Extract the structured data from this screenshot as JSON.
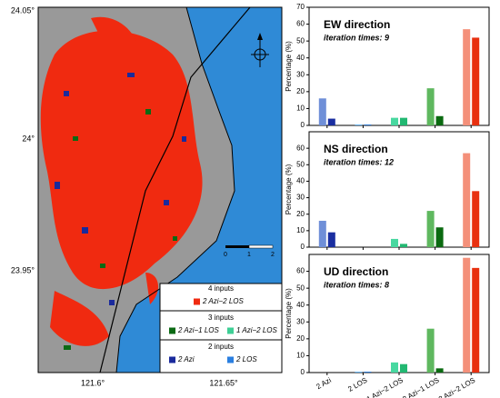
{
  "map": {
    "lat_labels": [
      "24.05°",
      "24°",
      "23.95°"
    ],
    "lon_labels": [
      "121.6°",
      "121.65°"
    ],
    "scale_labels": [
      "0",
      "1",
      "2"
    ],
    "legend": {
      "groups": [
        {
          "title": "4 inputs",
          "items": [
            "2 Azi−2 LOS"
          ]
        },
        {
          "title": "3 inputs",
          "items": [
            "2 Azi−1 LOS",
            "1 Azi−2 LOS"
          ]
        },
        {
          "title": "2 inputs",
          "items": [
            "2 Azi",
            "2 LOS"
          ]
        }
      ],
      "colors": [
        [
          "#f02a10"
        ],
        [
          "#0b6a14",
          "#3ecf95"
        ],
        [
          "#1a2a9c",
          "#2a7fe0"
        ]
      ]
    }
  },
  "chart_data": [
    {
      "type": "bar",
      "title": "EW direction",
      "subtitle": "iteration times: 9",
      "y_label": "Percentage (%)",
      "values": [
        [
          16,
          4
        ],
        [
          0.5,
          0.5
        ],
        [
          4.5,
          4.5
        ],
        [
          22,
          5.5
        ],
        [
          57,
          52
        ]
      ],
      "colors": [
        [
          "#6f8fd8",
          "#1a2ea0"
        ],
        [
          "#5aaef0",
          "#1f6fd0"
        ],
        [
          "#48d8a0",
          "#22b872"
        ],
        [
          "#5fb85f",
          "#0a6a10"
        ],
        [
          "#f4907a",
          "#e83010"
        ]
      ],
      "ylim": [
        0,
        70
      ],
      "yticks": [
        0,
        10,
        20,
        30,
        40,
        50,
        60,
        70
      ]
    },
    {
      "type": "bar",
      "title": "NS direction",
      "subtitle": "iteration times: 12",
      "y_label": "Percentage (%)",
      "values": [
        [
          16,
          9
        ],
        [
          0,
          0
        ],
        [
          5,
          2
        ],
        [
          22,
          12
        ],
        [
          57,
          34
        ]
      ],
      "colors": [
        [
          "#6f8fd8",
          "#1a2ea0"
        ],
        [
          "#5aaef0",
          "#1f6fd0"
        ],
        [
          "#48d8a0",
          "#22b872"
        ],
        [
          "#5fb85f",
          "#0a6a10"
        ],
        [
          "#f4907a",
          "#e83010"
        ]
      ],
      "ylim": [
        0,
        70
      ],
      "yticks": [
        0,
        10,
        20,
        30,
        40,
        50,
        60
      ]
    },
    {
      "type": "bar",
      "title": "UD direction",
      "subtitle": "iteration times: 8",
      "y_label": "Percentage (%)",
      "categories": [
        "2 Azi",
        "2 LOS",
        "1 Azi−2 LOS",
        "2 Azi−1 LOS",
        "2 Azi−2 LOS"
      ],
      "values": [
        [
          0,
          0
        ],
        [
          0.5,
          0.5
        ],
        [
          6,
          5
        ],
        [
          26,
          2.5
        ],
        [
          68,
          62
        ]
      ],
      "colors": [
        [
          "#6f8fd8",
          "#1a2ea0"
        ],
        [
          "#5aaef0",
          "#1f6fd0"
        ],
        [
          "#48d8a0",
          "#22b872"
        ],
        [
          "#5fb85f",
          "#0a6a10"
        ],
        [
          "#f4907a",
          "#e83010"
        ]
      ],
      "ylim": [
        0,
        70
      ],
      "yticks": [
        0,
        10,
        20,
        30,
        40,
        50,
        60
      ]
    }
  ]
}
